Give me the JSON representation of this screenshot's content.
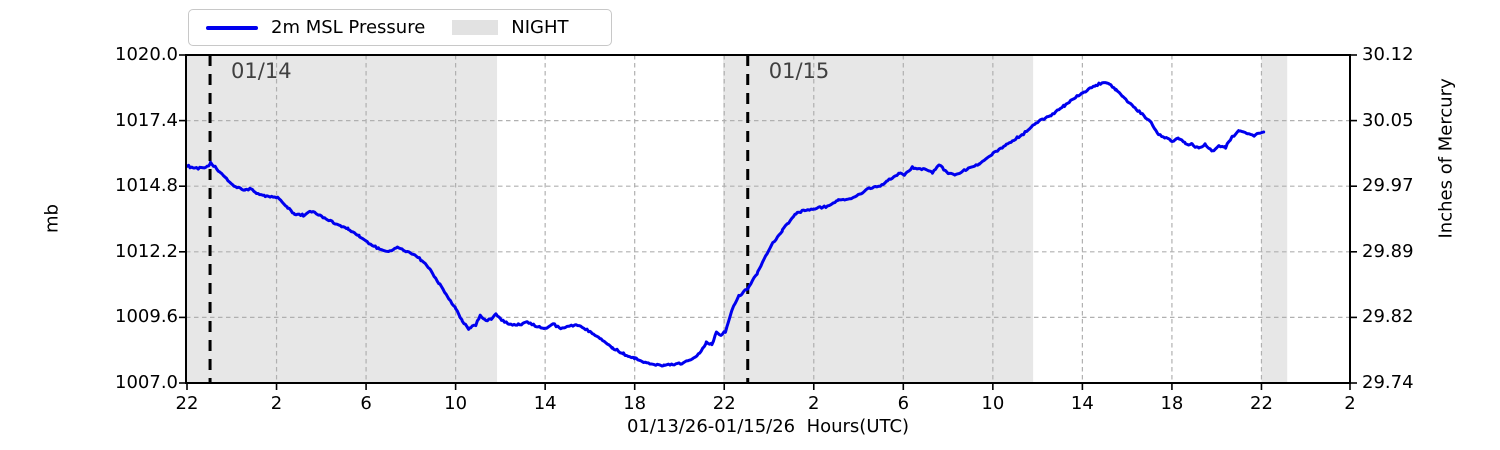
{
  "legend": {
    "series_label": "2m MSL Pressure",
    "night_label": "NIGHT"
  },
  "annotations": [
    {
      "label": "01/14",
      "hour": 1.03
    },
    {
      "label": "01/15",
      "hour": 25.05
    }
  ],
  "colors": {
    "line": "#0000ee",
    "night_band": "#e7e7e7",
    "grid": "#b0b0b0",
    "spine": "#000000",
    "annotation_line": "#000000",
    "annotation_text": "#404040",
    "legend_patch": "#e2e2e2",
    "legend_border": "#c8c8c8"
  },
  "chart_data": {
    "type": "line",
    "title": "",
    "xlabel": "01/13/26-01/15/26  Hours(UTC)",
    "x_axis": {
      "units": "hours after 01/13/26 22:00 UTC",
      "range_hours": [
        0,
        52
      ],
      "tick_hours": [
        0,
        4,
        8,
        12,
        16,
        20,
        24,
        28,
        32,
        36,
        40,
        44,
        48,
        52
      ],
      "tick_labels": [
        "22",
        "2",
        "6",
        "10",
        "14",
        "18",
        "22",
        "2",
        "6",
        "10",
        "14",
        "18",
        "22",
        "2"
      ]
    },
    "y_axis_left": {
      "label": "mb",
      "range": [
        1007.0,
        1020.0
      ],
      "ticks": [
        1020.0,
        1017.4,
        1014.8,
        1012.2,
        1009.6,
        1007.0
      ],
      "tick_labels": [
        "1020.0",
        "1017.4",
        "1014.8",
        "1012.2",
        "1009.6",
        "1007.0"
      ]
    },
    "y_axis_right": {
      "label": "Inches of Mercury",
      "tick_labels": [
        "30.12",
        "30.05",
        "29.97",
        "29.89",
        "29.82",
        "29.74"
      ]
    },
    "grid": true,
    "legend_position": "top-left-outside",
    "night_bands_hours": [
      [
        0,
        13.85
      ],
      [
        23.95,
        37.8
      ],
      [
        48.0,
        49.15
      ]
    ],
    "annotation_lines_hours": [
      1.03,
      25.05
    ],
    "series": [
      {
        "name": "2m MSL Pressure",
        "units": "mb",
        "noise_mb": 0.05,
        "noise_step_hours": 0.07,
        "points": [
          [
            0.0,
            1015.6
          ],
          [
            0.5,
            1015.5
          ],
          [
            0.9,
            1015.55
          ],
          [
            1.05,
            1015.72
          ],
          [
            1.55,
            1015.3
          ],
          [
            2.1,
            1014.78
          ],
          [
            2.6,
            1014.65
          ],
          [
            2.85,
            1014.7
          ],
          [
            3.1,
            1014.5
          ],
          [
            3.5,
            1014.42
          ],
          [
            4.05,
            1014.35
          ],
          [
            4.5,
            1013.95
          ],
          [
            4.8,
            1013.7
          ],
          [
            5.2,
            1013.65
          ],
          [
            5.5,
            1013.8
          ],
          [
            5.8,
            1013.72
          ],
          [
            6.2,
            1013.5
          ],
          [
            6.7,
            1013.3
          ],
          [
            7.2,
            1013.1
          ],
          [
            7.7,
            1012.8
          ],
          [
            8.2,
            1012.5
          ],
          [
            8.6,
            1012.3
          ],
          [
            9.0,
            1012.2
          ],
          [
            9.4,
            1012.38
          ],
          [
            9.7,
            1012.25
          ],
          [
            10.1,
            1012.12
          ],
          [
            10.5,
            1011.85
          ],
          [
            10.9,
            1011.45
          ],
          [
            11.3,
            1010.9
          ],
          [
            11.7,
            1010.35
          ],
          [
            12.0,
            1009.95
          ],
          [
            12.3,
            1009.45
          ],
          [
            12.6,
            1009.15
          ],
          [
            12.9,
            1009.3
          ],
          [
            13.1,
            1009.68
          ],
          [
            13.35,
            1009.45
          ],
          [
            13.6,
            1009.55
          ],
          [
            13.8,
            1009.72
          ],
          [
            14.05,
            1009.5
          ],
          [
            14.4,
            1009.35
          ],
          [
            14.8,
            1009.3
          ],
          [
            15.2,
            1009.42
          ],
          [
            15.6,
            1009.25
          ],
          [
            16.0,
            1009.15
          ],
          [
            16.35,
            1009.35
          ],
          [
            16.7,
            1009.15
          ],
          [
            17.1,
            1009.25
          ],
          [
            17.45,
            1009.3
          ],
          [
            17.8,
            1009.15
          ],
          [
            18.1,
            1009.0
          ],
          [
            18.5,
            1008.75
          ],
          [
            19.0,
            1008.4
          ],
          [
            19.5,
            1008.15
          ],
          [
            20.0,
            1007.98
          ],
          [
            20.4,
            1007.85
          ],
          [
            20.8,
            1007.75
          ],
          [
            21.3,
            1007.7
          ],
          [
            21.7,
            1007.73
          ],
          [
            22.1,
            1007.78
          ],
          [
            22.5,
            1007.92
          ],
          [
            22.9,
            1008.2
          ],
          [
            23.2,
            1008.6
          ],
          [
            23.45,
            1008.55
          ],
          [
            23.65,
            1009.0
          ],
          [
            23.85,
            1008.9
          ],
          [
            24.05,
            1009.05
          ],
          [
            24.35,
            1009.9
          ],
          [
            24.65,
            1010.45
          ],
          [
            25.05,
            1010.75
          ],
          [
            25.5,
            1011.4
          ],
          [
            26.1,
            1012.45
          ],
          [
            26.6,
            1013.05
          ],
          [
            27.2,
            1013.7
          ],
          [
            27.6,
            1013.85
          ],
          [
            28.0,
            1013.9
          ],
          [
            28.4,
            1013.97
          ],
          [
            28.8,
            1014.05
          ],
          [
            29.1,
            1014.25
          ],
          [
            29.7,
            1014.3
          ],
          [
            30.4,
            1014.68
          ],
          [
            30.9,
            1014.8
          ],
          [
            31.3,
            1015.0
          ],
          [
            31.8,
            1015.3
          ],
          [
            32.05,
            1015.25
          ],
          [
            32.4,
            1015.55
          ],
          [
            33.0,
            1015.45
          ],
          [
            33.3,
            1015.35
          ],
          [
            33.6,
            1015.65
          ],
          [
            34.0,
            1015.3
          ],
          [
            34.3,
            1015.25
          ],
          [
            34.9,
            1015.5
          ],
          [
            35.4,
            1015.7
          ],
          [
            36.0,
            1016.1
          ],
          [
            36.6,
            1016.43
          ],
          [
            37.3,
            1016.83
          ],
          [
            37.65,
            1017.1
          ],
          [
            38.0,
            1017.35
          ],
          [
            38.6,
            1017.6
          ],
          [
            39.2,
            1018.0
          ],
          [
            40.0,
            1018.5
          ],
          [
            40.6,
            1018.8
          ],
          [
            40.95,
            1018.9
          ],
          [
            41.2,
            1018.85
          ],
          [
            41.5,
            1018.6
          ],
          [
            41.8,
            1018.35
          ],
          [
            42.4,
            1017.85
          ],
          [
            43.0,
            1017.4
          ],
          [
            43.4,
            1016.85
          ],
          [
            44.0,
            1016.6
          ],
          [
            44.3,
            1016.7
          ],
          [
            44.6,
            1016.5
          ],
          [
            44.9,
            1016.45
          ],
          [
            45.2,
            1016.3
          ],
          [
            45.5,
            1016.45
          ],
          [
            45.8,
            1016.2
          ],
          [
            46.1,
            1016.4
          ],
          [
            46.4,
            1016.35
          ],
          [
            46.7,
            1016.75
          ],
          [
            47.0,
            1017.0
          ],
          [
            47.3,
            1016.95
          ],
          [
            47.6,
            1016.8
          ],
          [
            48.1,
            1016.95
          ]
        ]
      }
    ]
  }
}
